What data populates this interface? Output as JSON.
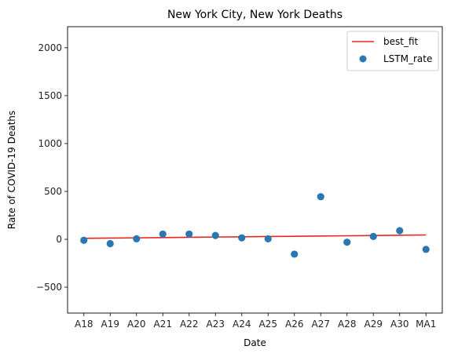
{
  "chart_data": {
    "type": "scatter",
    "title": "New York City, New York Deaths",
    "xlabel": "Date",
    "ylabel": "Rate of COVID-19 Deaths",
    "categories": [
      "A18",
      "A19",
      "A20",
      "A21",
      "A22",
      "A23",
      "A24",
      "A25",
      "A26",
      "A27",
      "A28",
      "A29",
      "A30",
      "MA1"
    ],
    "ylim": [
      -770,
      2220
    ],
    "yticks": [
      -500,
      0,
      500,
      1000,
      1500,
      2000
    ],
    "ytick_labels": [
      "−500",
      "0",
      "500",
      "1000",
      "1500",
      "2000"
    ],
    "grid": false,
    "legend_position": "top-right",
    "series": [
      {
        "name": "best_fit",
        "kind": "line",
        "color": "#e8261d",
        "values": [
          10,
          12.7,
          15.4,
          18.1,
          20.8,
          23.5,
          26.2,
          28.9,
          31.6,
          34.3,
          37.0,
          39.7,
          42.4,
          45
        ]
      },
      {
        "name": "LSTM_rate",
        "kind": "scatter",
        "color": "#2a77b4",
        "values": [
          -10,
          -45,
          5,
          55,
          55,
          40,
          15,
          5,
          -155,
          445,
          -30,
          30,
          90,
          -105
        ]
      }
    ]
  }
}
